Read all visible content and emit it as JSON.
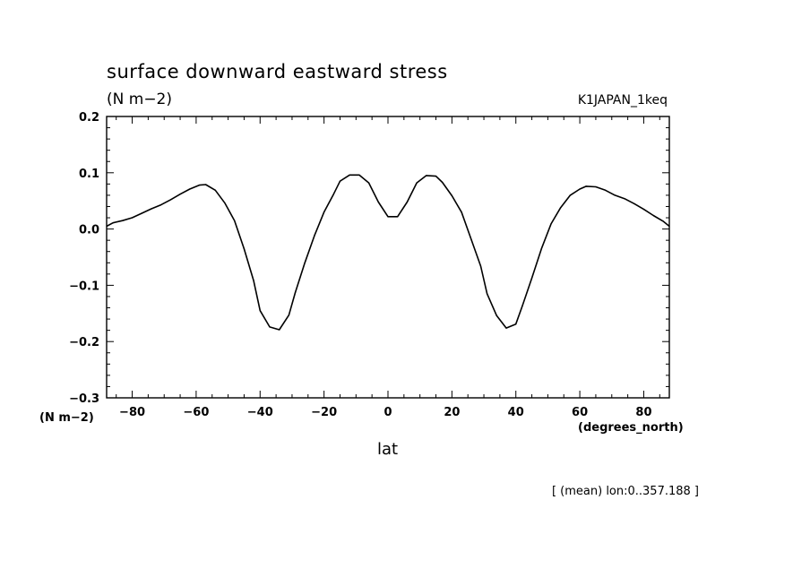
{
  "chart_data": {
    "type": "line",
    "title": "surface downward eastward stress",
    "units_label": "(N m−2)",
    "dataset": "K1JAPAN_1keq",
    "y_axis_unit": "(N m−2)",
    "x_axis_unit": "(degrees_north)",
    "xlabel": "lat",
    "note": "[ (mean) lon:0..357.188 ]",
    "xlim": [
      -88,
      88
    ],
    "ylim": [
      -0.3,
      0.2
    ],
    "x_ticks": [
      -80,
      -60,
      -40,
      -20,
      0,
      20,
      40,
      60,
      80
    ],
    "x_tick_labels": [
      "−80",
      "−60",
      "−40",
      "−20",
      "0",
      "20",
      "40",
      "60",
      "80"
    ],
    "y_ticks": [
      0.2,
      0.1,
      0.0,
      -0.1,
      -0.2,
      -0.3
    ],
    "y_tick_labels": [
      "0.2",
      "0.1",
      "0.0",
      "−0.1",
      "−0.2",
      "−0.3"
    ],
    "grid": false,
    "line_color": "#000000",
    "series": [
      {
        "x": [
          -88,
          -86,
          -83,
          -80,
          -77,
          -74,
          -71,
          -68,
          -65,
          -62,
          -59,
          -57,
          -54,
          -51,
          -48,
          -45,
          -42,
          -40,
          -37,
          -34,
          -31,
          -29,
          -26,
          -23,
          -20,
          -17,
          -15,
          -12,
          -9,
          -6,
          -3,
          0,
          3,
          6,
          9,
          12,
          15,
          17,
          20,
          23,
          26,
          29,
          31,
          34,
          37,
          40,
          42,
          45,
          48,
          51,
          54,
          57,
          60,
          62,
          65,
          68,
          71,
          74,
          77,
          80,
          83,
          86,
          88
        ],
        "y": [
          0.005,
          0.011,
          0.015,
          0.02,
          0.028,
          0.036,
          0.043,
          0.052,
          0.062,
          0.071,
          0.078,
          0.079,
          0.069,
          0.046,
          0.015,
          -0.035,
          -0.092,
          -0.145,
          -0.174,
          -0.179,
          -0.153,
          -0.113,
          -0.06,
          -0.012,
          0.03,
          0.062,
          0.085,
          0.096,
          0.096,
          0.082,
          0.048,
          0.022,
          0.022,
          0.048,
          0.082,
          0.095,
          0.094,
          0.083,
          0.059,
          0.03,
          -0.018,
          -0.066,
          -0.115,
          -0.154,
          -0.176,
          -0.169,
          -0.137,
          -0.087,
          -0.035,
          0.009,
          0.038,
          0.06,
          0.071,
          0.076,
          0.075,
          0.069,
          0.06,
          0.054,
          0.045,
          0.035,
          0.024,
          0.014,
          0.005
        ]
      }
    ]
  }
}
